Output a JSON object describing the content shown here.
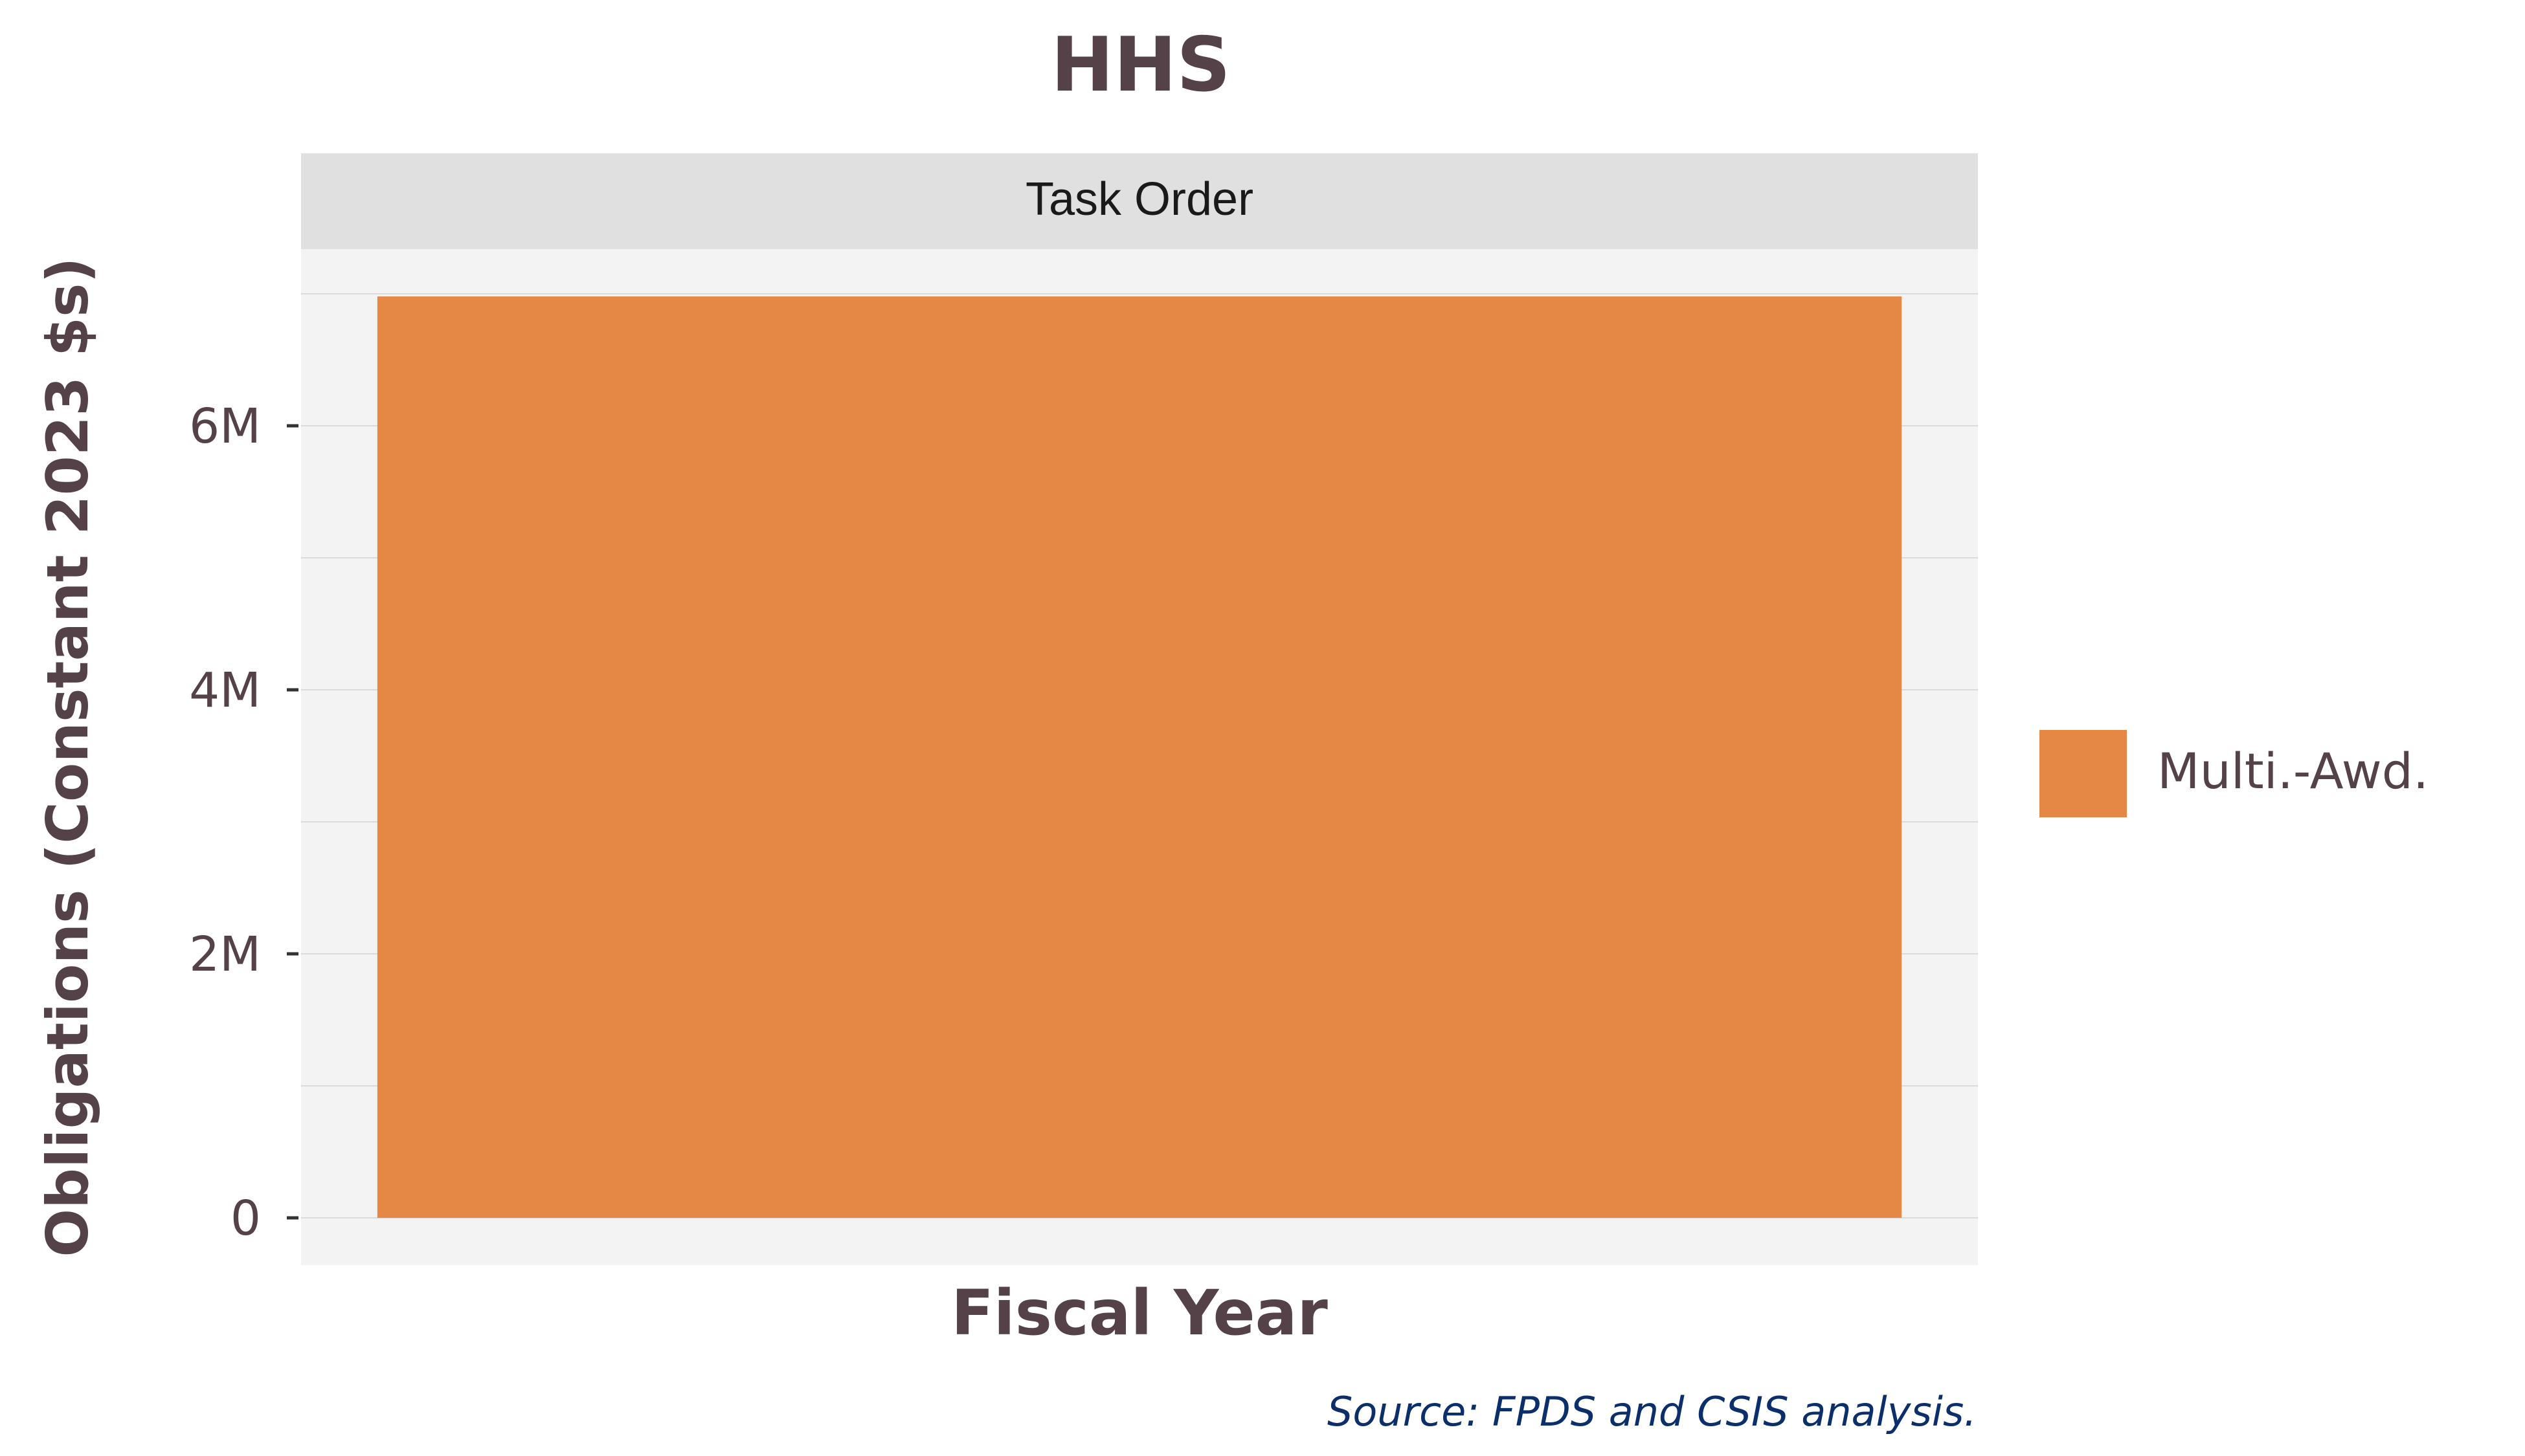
{
  "chart_data": {
    "type": "bar",
    "title": "HHS",
    "facet": "Task Order",
    "xlabel": "Fiscal Year",
    "ylabel": "Obligations (Constant 2023 $s)",
    "categories": [
      ""
    ],
    "series": [
      {
        "name": "Multi.-Awd.",
        "values": [
          6980000
        ]
      }
    ],
    "ylim": [
      0,
      7000000
    ],
    "yticks": [
      {
        "value": 0,
        "label": "0"
      },
      {
        "value": 2000000,
        "label": "2M"
      },
      {
        "value": 4000000,
        "label": "4M"
      },
      {
        "value": 6000000,
        "label": "6M"
      }
    ],
    "minor_gridlines": [
      1000000,
      3000000,
      5000000,
      7000000
    ],
    "grid": true,
    "legend_position": "right",
    "source": "Source: FPDS and CSIS analysis.",
    "colors": {
      "bar": "#E58846",
      "panel_bg": "#F3F3F3",
      "strip_bg": "#E0E0E0",
      "gridline": "#DADADA",
      "text": "#554249",
      "source_text": "#0B2F6B"
    }
  }
}
